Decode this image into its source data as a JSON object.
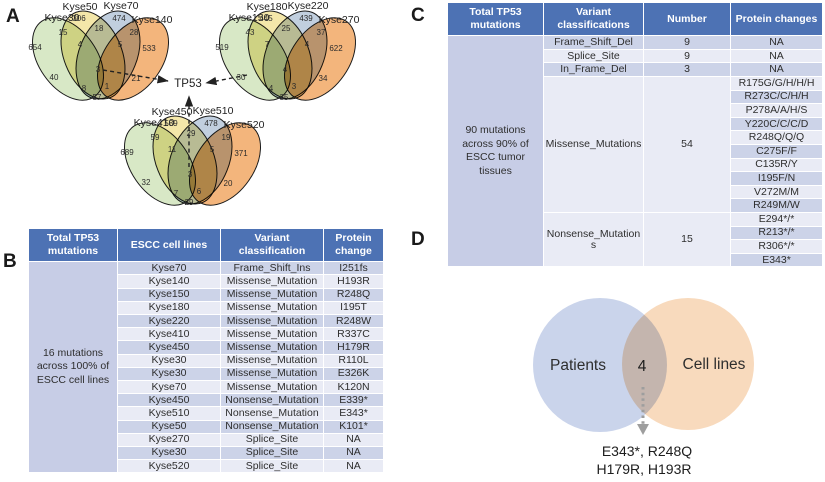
{
  "panel_letters": {
    "a": "A",
    "b": "B",
    "c": "C",
    "d": "D"
  },
  "panel_a": {
    "tp53_label": "TP53",
    "region_order": [
      "a",
      "b",
      "c",
      "d",
      "ab",
      "bc",
      "cd",
      "abc",
      "bcd",
      "ac",
      "bd",
      "abcd",
      "acd",
      "abd",
      "ad"
    ],
    "venns": [
      {
        "sets": [
          "Kyse30",
          "Kyse50",
          "Kyse70",
          "Kyse140"
        ],
        "regions": {
          "a": 654,
          "b": 306,
          "c": 474,
          "d": 533,
          "ab": 15,
          "bc": 18,
          "cd": 28,
          "abc": 4,
          "bcd": 5,
          "ac": 40,
          "bd": 21,
          "abcd": 3,
          "acd": 8,
          "abd": 1,
          "ad": 57
        }
      },
      {
        "sets": [
          "Kyse150",
          "Kyse180",
          "Kyse220",
          "Kyse270"
        ],
        "regions": {
          "a": 519,
          "b": 445,
          "c": 439,
          "d": 622,
          "ab": 43,
          "bc": 25,
          "cd": 37,
          "abc": 7,
          "bcd": 4,
          "ac": 30,
          "bd": 34,
          "abcd": 4,
          "acd": 4,
          "abd": 3,
          "ad": 35
        }
      },
      {
        "sets": [
          "Kyse410",
          "Kyse450",
          "Kyse510",
          "Kyse520"
        ],
        "regions": {
          "a": 689,
          "b": 589,
          "c": 478,
          "d": 371,
          "ab": 59,
          "bc": 29,
          "cd": 19,
          "abc": 11,
          "bcd": 5,
          "ac": 32,
          "bd": 20,
          "abcd": 3,
          "acd": 7,
          "abd": 6,
          "ad": 29
        }
      }
    ]
  },
  "panel_b": {
    "headers": [
      "Total TP53 mutations",
      "ESCC cell lines",
      "Variant classification",
      "Protein change"
    ],
    "span_label": "16 mutations across 100% of ESCC cell lines",
    "rows": [
      [
        "Kyse70",
        "Frame_Shift_Ins",
        "I251fs"
      ],
      [
        "Kyse140",
        "Missense_Mutation",
        "H193R"
      ],
      [
        "Kyse150",
        "Missense_Mutation",
        "R248Q"
      ],
      [
        "Kyse180",
        "Missense_Mutation",
        "I195T"
      ],
      [
        "Kyse220",
        "Missense_Mutation",
        "R248W"
      ],
      [
        "Kyse410",
        "Missense_Mutation",
        "R337C"
      ],
      [
        "Kyse450",
        "Missense_Mutation",
        "H179R"
      ],
      [
        "Kyse30",
        "Missense_Mutation",
        "R110L"
      ],
      [
        "Kyse30",
        "Missense_Mutation",
        "E326K"
      ],
      [
        "Kyse70",
        "Missense_Mutation",
        "K120N"
      ],
      [
        "Kyse450",
        "Nonsense_Mutation",
        "E339*"
      ],
      [
        "Kyse510",
        "Nonsense_Mutation",
        "E343*"
      ],
      [
        "Kyse50",
        "Nonsense_Mutation",
        "K101*"
      ],
      [
        "Kyse270",
        "Splice_Site",
        "NA"
      ],
      [
        "Kyse30",
        "Splice_Site",
        "NA"
      ],
      [
        "Kyse520",
        "Splice_Site",
        "NA"
      ]
    ]
  },
  "panel_c": {
    "headers": [
      "Total TP53 mutations",
      "Variant classifications",
      "Number",
      "Protein changes"
    ],
    "span_label": "90 mutations across 90% of ESCC tumor tissues",
    "groups": [
      {
        "variant": "Frame_Shift_Del",
        "number": "9",
        "proteins": [
          "NA"
        ]
      },
      {
        "variant": "Splice_Site",
        "number": "9",
        "proteins": [
          "NA"
        ]
      },
      {
        "variant": "In_Frame_Del",
        "number": "3",
        "proteins": [
          "NA"
        ]
      },
      {
        "variant": "Missense_Mutations",
        "number": "54",
        "proteins": [
          "R175G/G/H/H/H",
          "R273C/C/H/H",
          "P278A/A/H/S",
          "Y220C/C/C/D",
          "R248Q/Q/Q",
          "C275F/F",
          "C135R/Y",
          "I195F/N",
          "V272M/M",
          "R249M/W"
        ]
      },
      {
        "variant": "Nonsense_Mutations",
        "number": "15",
        "proteins": [
          "E294*/*",
          "R213*/*",
          "R306*/*",
          "E343*"
        ]
      }
    ]
  },
  "panel_d": {
    "left_label": "Patients",
    "right_label": "Cell lines",
    "overlap_count": "4",
    "callout_line1": "E343*, R248Q",
    "callout_line2": "H179R, H193R"
  },
  "colors": {
    "table_header_blue": "#4d72b4",
    "row_dark": "#ccd3e8",
    "row_light": "#e9ebf5",
    "span_column": "#c7cde6",
    "venn_set_fills": [
      "#cfe3ba",
      "#f2e296",
      "#b3c5d8",
      "#f0a55f"
    ],
    "venn_stroke": "#1a1a1a",
    "patients_circle": "#c4cfe9",
    "cell_lines_circle": "#f7d6b6",
    "dotted_arrow_gray": "#9e9e9e"
  }
}
